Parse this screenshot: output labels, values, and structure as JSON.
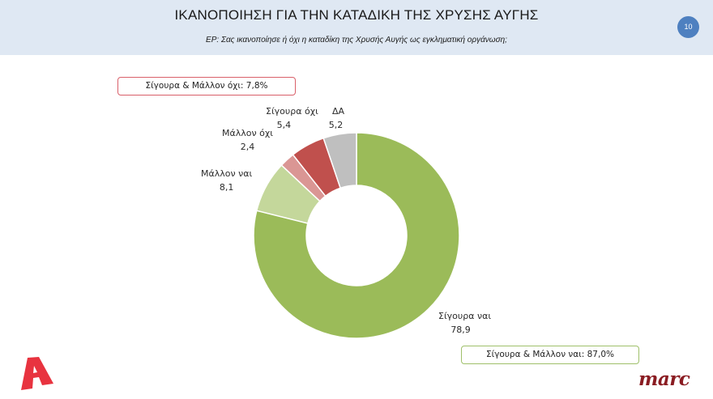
{
  "header": {
    "title": "ΙΚΑΝΟΠΟΙΗΣΗ ΓΙΑ ΤΗΝ ΚΑΤΑΔΙΚΗ ΤΗΣ ΧΡΥΣΗΣ ΑΥΓΗΣ",
    "subtitle": "ΕΡ: Σας ικανοποίησε ή όχι η καταδίκη της Χρυσής Αυγής ως εγκληματική οργάνωση;",
    "page_number": "10"
  },
  "callouts": {
    "no_total": "Σίγουρα & Μάλλον όχι: 7,8%",
    "yes_total": "Σίγουρα & Μάλλον ναι: 87,0%"
  },
  "labels": {
    "definitely_yes": {
      "name": "Σίγουρα ναι",
      "value": "78,9"
    },
    "rather_yes": {
      "name": "Μάλλον ναι",
      "value": "8,1"
    },
    "rather_no": {
      "name": "Μάλλον όχι",
      "value": "2,4"
    },
    "definitely_no": {
      "name": "Σίγουρα όχι",
      "value": "5,4"
    },
    "dk": {
      "name": "ΔΑ",
      "value": "5,2"
    }
  },
  "logos": {
    "left": "A",
    "right": "marc"
  },
  "colors": {
    "header_bg": "#dfe8f3",
    "badge": "#4e80c0",
    "definitely_yes": "#9bbb59",
    "rather_yes": "#c4d79b",
    "rather_no": "#da9694",
    "definitely_no": "#c0504d",
    "dk": "#bfbfbf",
    "logo_a": "#e8333f",
    "logo_marc": "#8a1c22"
  },
  "chart_data": {
    "type": "pie",
    "variant": "donut",
    "title": "ΙΚΑΝΟΠΟΙΗΣΗ ΓΙΑ ΤΗΝ ΚΑΤΑΔΙΚΗ ΤΗΣ ΧΡΥΣΗΣ ΑΥΓΗΣ",
    "subtitle": "ΕΡ: Σας ικανοποίησε ή όχι η καταδίκη της Χρυσής Αυγής ως εγκληματική οργάνωση;",
    "categories": [
      "Σίγουρα ναι",
      "Μάλλον ναι",
      "Μάλλον όχι",
      "Σίγουρα όχι",
      "ΔΑ"
    ],
    "values": [
      78.9,
      8.1,
      2.4,
      5.4,
      5.2
    ],
    "colors": [
      "#9bbb59",
      "#c4d79b",
      "#da9694",
      "#c0504d",
      "#bfbfbf"
    ],
    "start_angle": "12 o'clock, clockwise",
    "annotations": [
      "Σίγουρα & Μάλλον όχι: 7,8%",
      "Σίγουρα & Μάλλον ναι: 87,0%"
    ],
    "legend": "none (direct labels)"
  }
}
